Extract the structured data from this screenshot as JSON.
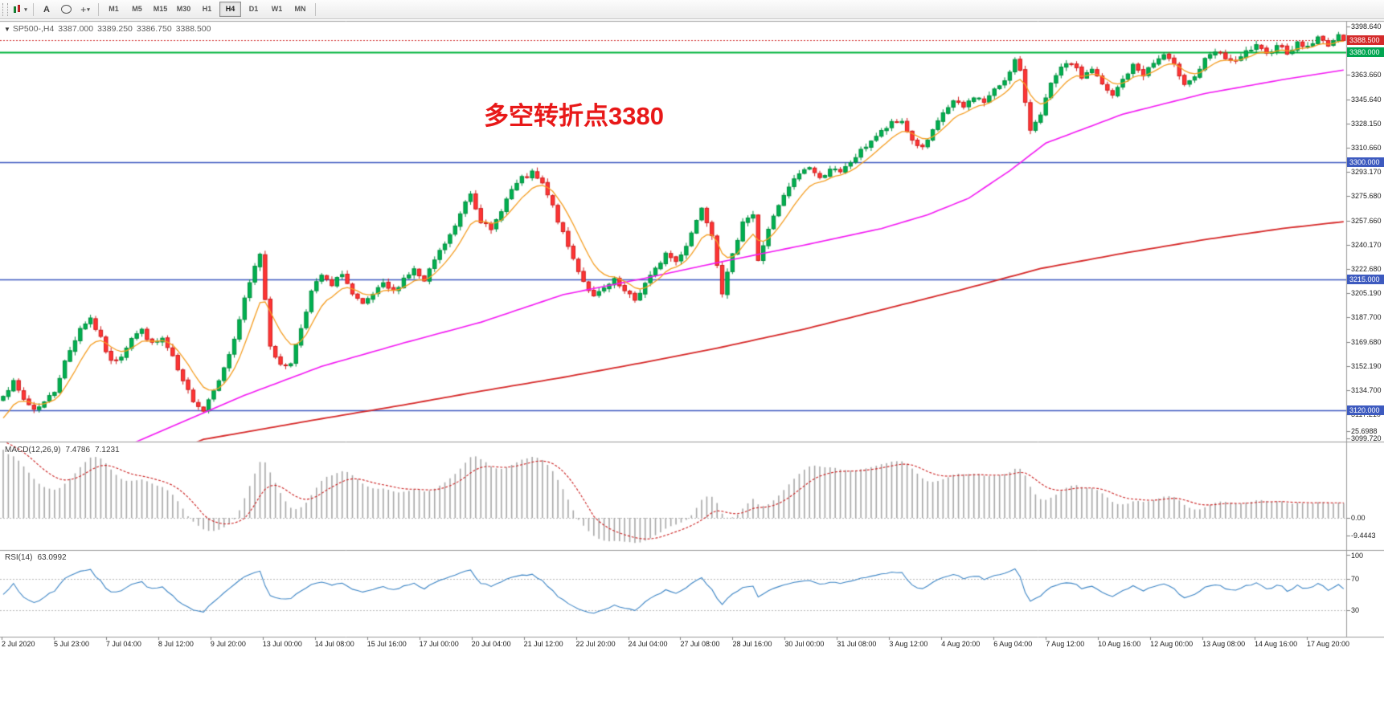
{
  "toolbar": {
    "text_tool_label": "A",
    "timeframes": [
      "M1",
      "M5",
      "M15",
      "M30",
      "H1",
      "H4",
      "D1",
      "W1",
      "MN"
    ],
    "active_timeframe": "H4"
  },
  "chart": {
    "title": {
      "symbol_period": "SP500-,H4",
      "open": "3387.000",
      "high": "3389.250",
      "low": "3386.750",
      "close": "3388.500"
    },
    "annotation": {
      "text": "多空转折点3380",
      "color": "#e81818"
    },
    "price_axis_labels": [
      "3398.640",
      "3363.660",
      "3345.640",
      "3328.150",
      "3310.660",
      "3293.170",
      "3275.680",
      "3257.660",
      "3240.170",
      "3222.680",
      "3205.190",
      "3187.700",
      "3169.680",
      "3152.190",
      "3134.700",
      "3117.210",
      "3099.720"
    ],
    "price_range": {
      "min": 3099.72,
      "max": 3398.64
    },
    "badges": [
      {
        "label": "3388.500",
        "price": 3388.5,
        "color": "#d42a2a"
      },
      {
        "label": "3380.000",
        "price": 3380,
        "color": "#00a651"
      },
      {
        "label": "3300.000",
        "price": 3300,
        "color": "#3d5abf"
      },
      {
        "label": "3215.000",
        "price": 3215,
        "color": "#3d5abf"
      },
      {
        "label": "3120.000",
        "price": 3120,
        "color": "#3d5abf"
      }
    ],
    "hlines": [
      {
        "name": "bid-line",
        "price": 3388.5,
        "color": "#d42a2a",
        "style": "dotted",
        "width": 1
      },
      {
        "name": "level-3380",
        "price": 3380,
        "color": "#00b43c",
        "style": "solid",
        "width": 2
      },
      {
        "name": "level-3300",
        "price": 3300,
        "color": "#3d5abf",
        "style": "solid",
        "width": 1.4
      },
      {
        "name": "level-3215",
        "price": 3215,
        "color": "#3d5abf",
        "style": "solid",
        "width": 1.4
      },
      {
        "name": "level-3120",
        "price": 3120,
        "color": "#3d5abf",
        "style": "solid",
        "width": 1.4
      }
    ],
    "colors": {
      "up": "#00b050",
      "up_border": "#008f3e",
      "down": "#ff3535",
      "down_border": "#cf1d1d",
      "ma_fast": "#f59e22",
      "ma_mid": "#f318f3",
      "ma_slow": "#d62828",
      "macd_hist": "#a8a8a8",
      "macd_signal": "#cc2222",
      "rsi": "#3e86c6"
    }
  },
  "chart_data": {
    "type": "candlestick",
    "symbol": "SP500-",
    "period": "H4",
    "bars": 262,
    "close_anchors": [
      [
        0,
        3132
      ],
      [
        2,
        3140
      ],
      [
        4,
        3128
      ],
      [
        6,
        3121
      ],
      [
        8,
        3126
      ],
      [
        10,
        3134
      ],
      [
        12,
        3155
      ],
      [
        15,
        3180
      ],
      [
        17,
        3187
      ],
      [
        19,
        3172
      ],
      [
        21,
        3155
      ],
      [
        23,
        3160
      ],
      [
        25,
        3173
      ],
      [
        27,
        3178
      ],
      [
        29,
        3168
      ],
      [
        31,
        3172
      ],
      [
        33,
        3158
      ],
      [
        35,
        3140
      ],
      [
        37,
        3128
      ],
      [
        39,
        3120
      ],
      [
        41,
        3136
      ],
      [
        43,
        3150
      ],
      [
        45,
        3172
      ],
      [
        47,
        3200
      ],
      [
        49,
        3224
      ],
      [
        50,
        3234
      ],
      [
        52,
        3168
      ],
      [
        54,
        3152
      ],
      [
        56,
        3155
      ],
      [
        58,
        3180
      ],
      [
        60,
        3206
      ],
      [
        62,
        3218
      ],
      [
        64,
        3210
      ],
      [
        66,
        3220
      ],
      [
        68,
        3204
      ],
      [
        70,
        3196
      ],
      [
        72,
        3204
      ],
      [
        74,
        3211
      ],
      [
        76,
        3206
      ],
      [
        78,
        3216
      ],
      [
        80,
        3222
      ],
      [
        82,
        3213
      ],
      [
        84,
        3229
      ],
      [
        86,
        3241
      ],
      [
        88,
        3253
      ],
      [
        90,
        3272
      ],
      [
        91,
        3278
      ],
      [
        93,
        3258
      ],
      [
        95,
        3250
      ],
      [
        97,
        3266
      ],
      [
        99,
        3280
      ],
      [
        101,
        3288
      ],
      [
        103,
        3292
      ],
      [
        105,
        3284
      ],
      [
        107,
        3268
      ],
      [
        109,
        3248
      ],
      [
        111,
        3230
      ],
      [
        113,
        3214
      ],
      [
        115,
        3202
      ],
      [
        117,
        3208
      ],
      [
        119,
        3214
      ],
      [
        121,
        3206
      ],
      [
        123,
        3200
      ],
      [
        125,
        3212
      ],
      [
        127,
        3222
      ],
      [
        129,
        3234
      ],
      [
        131,
        3228
      ],
      [
        133,
        3240
      ],
      [
        135,
        3258
      ],
      [
        136,
        3268
      ],
      [
        138,
        3248
      ],
      [
        140,
        3206
      ],
      [
        142,
        3232
      ],
      [
        144,
        3258
      ],
      [
        146,
        3262
      ],
      [
        147,
        3228
      ],
      [
        149,
        3252
      ],
      [
        151,
        3268
      ],
      [
        153,
        3282
      ],
      [
        155,
        3292
      ],
      [
        157,
        3297
      ],
      [
        159,
        3288
      ],
      [
        161,
        3296
      ],
      [
        163,
        3292
      ],
      [
        165,
        3300
      ],
      [
        167,
        3308
      ],
      [
        169,
        3316
      ],
      [
        171,
        3322
      ],
      [
        173,
        3328
      ],
      [
        175,
        3330
      ],
      [
        177,
        3316
      ],
      [
        179,
        3310
      ],
      [
        181,
        3322
      ],
      [
        183,
        3336
      ],
      [
        185,
        3344
      ],
      [
        187,
        3340
      ],
      [
        189,
        3348
      ],
      [
        191,
        3344
      ],
      [
        193,
        3352
      ],
      [
        195,
        3360
      ],
      [
        197,
        3374
      ],
      [
        198,
        3366
      ],
      [
        199,
        3342
      ],
      [
        200,
        3324
      ],
      [
        202,
        3336
      ],
      [
        204,
        3356
      ],
      [
        206,
        3368
      ],
      [
        208,
        3372
      ],
      [
        210,
        3362
      ],
      [
        212,
        3368
      ],
      [
        214,
        3356
      ],
      [
        216,
        3348
      ],
      [
        218,
        3360
      ],
      [
        220,
        3370
      ],
      [
        222,
        3364
      ],
      [
        224,
        3372
      ],
      [
        226,
        3378
      ],
      [
        228,
        3370
      ],
      [
        230,
        3358
      ],
      [
        232,
        3362
      ],
      [
        234,
        3374
      ],
      [
        236,
        3380
      ],
      [
        238,
        3376
      ],
      [
        240,
        3372
      ],
      [
        242,
        3380
      ],
      [
        244,
        3384
      ],
      [
        246,
        3378
      ],
      [
        248,
        3386
      ],
      [
        250,
        3380
      ],
      [
        252,
        3386
      ],
      [
        254,
        3384
      ],
      [
        256,
        3390
      ],
      [
        258,
        3386
      ],
      [
        260,
        3391
      ],
      [
        261,
        3388.5
      ]
    ],
    "ma_fast": {
      "kind": "ema",
      "period": 8,
      "seed": 3110
    },
    "ma_mid_anchors": [
      [
        0,
        3055
      ],
      [
        27,
        3099
      ],
      [
        47,
        3131
      ],
      [
        62,
        3152
      ],
      [
        78,
        3169
      ],
      [
        93,
        3184
      ],
      [
        109,
        3204
      ],
      [
        125,
        3216
      ],
      [
        140,
        3228
      ],
      [
        156,
        3240
      ],
      [
        171,
        3252
      ],
      [
        180,
        3262
      ],
      [
        188,
        3274
      ],
      [
        196,
        3294
      ],
      [
        203,
        3314
      ],
      [
        218,
        3335
      ],
      [
        234,
        3350
      ],
      [
        249,
        3360
      ],
      [
        261,
        3367
      ]
    ],
    "ma_slow_anchors": [
      [
        0,
        3040
      ],
      [
        39,
        3099
      ],
      [
        62,
        3114
      ],
      [
        78,
        3124
      ],
      [
        93,
        3134
      ],
      [
        109,
        3144
      ],
      [
        125,
        3155
      ],
      [
        140,
        3166
      ],
      [
        156,
        3179
      ],
      [
        171,
        3193
      ],
      [
        187,
        3208
      ],
      [
        202,
        3223
      ],
      [
        218,
        3234
      ],
      [
        234,
        3244
      ],
      [
        249,
        3252
      ],
      [
        261,
        3257
      ]
    ],
    "time_labels": [
      "2 Jul 2020",
      "5 Jul 23:00",
      "7 Jul 04:00",
      "8 Jul 12:00",
      "9 Jul 20:00",
      "13 Jul 00:00",
      "14 Jul 08:00",
      "15 Jul 16:00",
      "17 Jul 00:00",
      "20 Jul 04:00",
      "21 Jul 12:00",
      "22 Jul 20:00",
      "24 Jul 04:00",
      "27 Jul 08:00",
      "28 Jul 16:00",
      "30 Jul 00:00",
      "31 Jul 08:00",
      "3 Aug 12:00",
      "4 Aug 20:00",
      "6 Aug 04:00",
      "7 Aug 12:00",
      "10 Aug 16:00",
      "12 Aug 00:00",
      "13 Aug 08:00",
      "14 Aug 16:00",
      "17 Aug 20:00"
    ],
    "indicators": [
      {
        "name": "MACD",
        "label": "MACD(12,26,9)",
        "value_main": "7.4786",
        "value_signal": "7.1231",
        "axis_labels": [
          "25.6988",
          "0.00",
          "-9.4443"
        ],
        "axis_values": [
          25.6988,
          0,
          -9.4443
        ]
      },
      {
        "name": "RSI",
        "label": "RSI(14)",
        "value": "63.0992",
        "axis_labels": [
          "100",
          "70",
          "30"
        ],
        "axis_values": [
          100,
          70,
          30
        ],
        "levels": [
          70,
          30
        ]
      }
    ]
  }
}
